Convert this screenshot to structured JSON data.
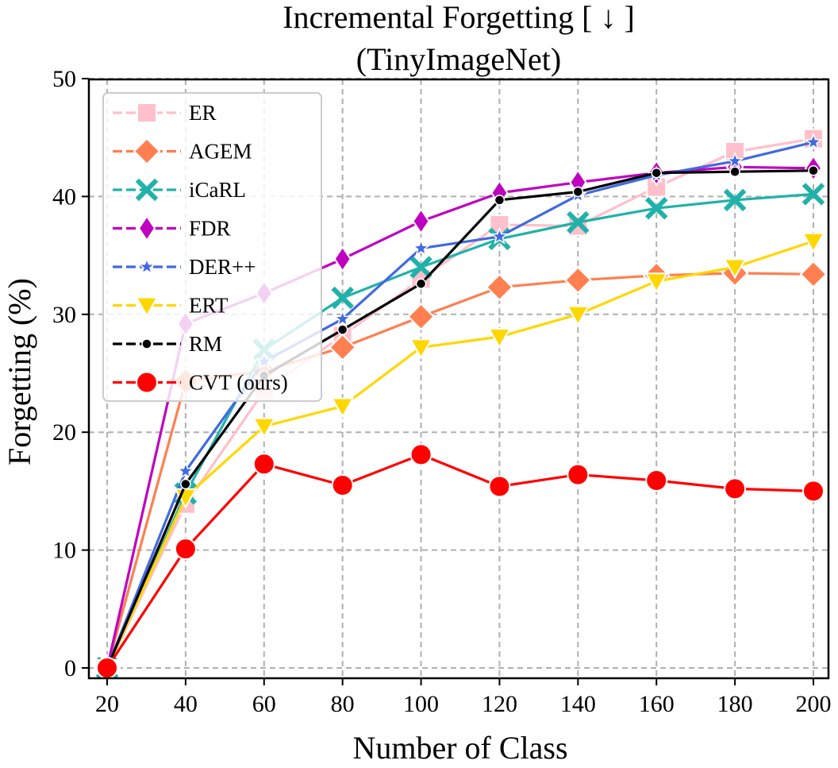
{
  "chart_data": {
    "type": "line",
    "title": "Incremental Forgetting [ ↓ ]",
    "subtitle": "(TinyImageNet)",
    "xlabel": "Number of Class",
    "ylabel": "Forgetting (%)",
    "xlim": [
      20,
      200
    ],
    "ylim": [
      0,
      50
    ],
    "x": [
      20,
      40,
      60,
      80,
      100,
      120,
      140,
      160,
      180,
      200
    ],
    "xticks": [
      "20",
      "40",
      "60",
      "80",
      "100",
      "120",
      "140",
      "160",
      "180",
      "200"
    ],
    "yticks": [
      "0",
      "10",
      "20",
      "30",
      "40",
      "50"
    ],
    "grid": true,
    "legend_position": "top-left",
    "series": [
      {
        "name": "ER",
        "color": "#ffc0cb",
        "marker": "square",
        "values": [
          0.0,
          13.9,
          23.5,
          28.2,
          33.0,
          37.6,
          37.5,
          40.8,
          43.8,
          44.9
        ]
      },
      {
        "name": "AGEM",
        "color": "#ff7f50",
        "marker": "diamond",
        "values": [
          0.0,
          24.3,
          25.2,
          27.2,
          29.8,
          32.3,
          32.9,
          33.3,
          33.5,
          33.4
        ]
      },
      {
        "name": "iCaRL",
        "color": "#20b2aa",
        "marker": "x",
        "values": [
          0.0,
          14.8,
          27.0,
          31.4,
          34.0,
          36.4,
          37.8,
          39.0,
          39.7,
          40.2
        ]
      },
      {
        "name": "FDR",
        "color": "#c000c0",
        "marker": "thin-diamond",
        "values": [
          0.0,
          29.2,
          31.8,
          34.7,
          37.9,
          40.3,
          41.2,
          42.0,
          42.5,
          42.4
        ]
      },
      {
        "name": "DER++",
        "color": "#4169e1",
        "marker": "star",
        "values": [
          0.0,
          16.7,
          26.0,
          29.6,
          35.6,
          36.6,
          40.1,
          41.8,
          43.0,
          44.6
        ]
      },
      {
        "name": "ERT",
        "color": "#ffd700",
        "marker": "triangle-down",
        "values": [
          0.0,
          14.5,
          20.5,
          22.2,
          27.2,
          28.1,
          30.0,
          32.8,
          34.0,
          36.2
        ]
      },
      {
        "name": "RM",
        "color": "#000000",
        "marker": "dot",
        "values": [
          0.0,
          15.6,
          24.8,
          28.7,
          32.6,
          39.7,
          40.4,
          42.0,
          42.1,
          42.2
        ]
      },
      {
        "name": "CVT (ours)",
        "color": "#ff0000",
        "marker": "circle",
        "values": [
          0.0,
          10.1,
          17.3,
          15.5,
          18.1,
          15.4,
          16.4,
          15.9,
          15.2,
          15.0
        ]
      }
    ]
  }
}
